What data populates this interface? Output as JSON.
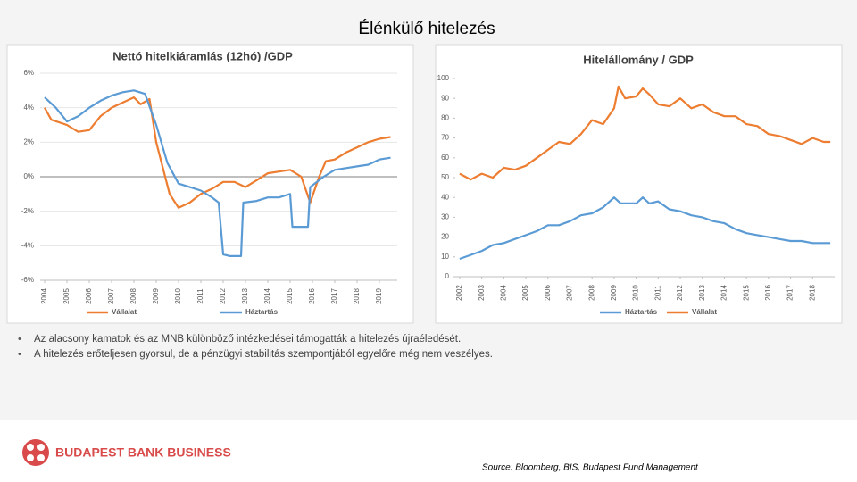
{
  "slide": {
    "title": "Élénkülő hitelezés",
    "bullets": [
      "Az alacsony kamatok és az MNB különböző intézkedései támogatták a hitelezés újraéledését.",
      "A hitelezés erőteljesen gyorsul, de a pénzügyi stabilitás szempontjából egyelőre még nem veszélyes."
    ],
    "logo": "BUDAPEST BANK BUSINESS",
    "source": "Source: Bloomberg, BIS, Budapest Fund Management"
  },
  "chart_data": [
    {
      "type": "line",
      "title": "Nettó hitelkiáramlás (12hó) /GDP",
      "xlim": [
        2003.8,
        2019.8
      ],
      "xticks": [
        2004,
        2005,
        2006,
        2007,
        2008,
        2009,
        2010,
        2011,
        2012,
        2013,
        2014,
        2015,
        2016,
        2017,
        2018,
        2019
      ],
      "ylim": [
        -6,
        6
      ],
      "yticks": [
        {
          "value": -6,
          "label": "-6%"
        },
        {
          "value": -4,
          "label": "-4%"
        },
        {
          "value": -2,
          "label": "-2%"
        },
        {
          "value": 0,
          "label": "0%"
        },
        {
          "value": 2,
          "label": "2%"
        },
        {
          "value": 4,
          "label": "4%"
        },
        {
          "value": 6,
          "label": "6%"
        }
      ],
      "grid": true,
      "series": [
        {
          "name": "Vállalat",
          "color": "#ed7d31",
          "x": [
            2004,
            2004.3,
            2005,
            2005.5,
            2006,
            2006.5,
            2007,
            2007.5,
            2008,
            2008.3,
            2008.7,
            2009,
            2009.3,
            2009.6,
            2010,
            2010.5,
            2011,
            2011.5,
            2012,
            2012.5,
            2013,
            2013.5,
            2014,
            2014.5,
            2015,
            2015.5,
            2015.9,
            2016.3,
            2016.6,
            2017,
            2017.5,
            2018,
            2018.5,
            2019,
            2019.5
          ],
          "values": [
            4.0,
            3.3,
            3.0,
            2.6,
            2.7,
            3.5,
            4.0,
            4.3,
            4.6,
            4.2,
            4.5,
            2.0,
            0.5,
            -1.0,
            -1.8,
            -1.5,
            -1.0,
            -0.7,
            -0.3,
            -0.3,
            -0.6,
            -0.2,
            0.2,
            0.3,
            0.4,
            0.0,
            -1.5,
            0.0,
            0.9,
            1.0,
            1.4,
            1.7,
            2.0,
            2.2,
            2.3
          ]
        },
        {
          "name": "Háztartás",
          "color": "#5b9bd5",
          "x": [
            2004,
            2004.5,
            2005,
            2005.5,
            2006,
            2006.5,
            2007,
            2007.5,
            2008,
            2008.5,
            2009,
            2009.5,
            2010,
            2010.5,
            2011,
            2011.5,
            2011.8,
            2012,
            2012.3,
            2012.8,
            2012.9,
            2013.5,
            2014,
            2014.5,
            2015,
            2015.1,
            2015.8,
            2015.9,
            2016.5,
            2017,
            2017.5,
            2018,
            2018.5,
            2019,
            2019.5
          ],
          "values": [
            4.6,
            4.0,
            3.2,
            3.5,
            4.0,
            4.4,
            4.7,
            4.9,
            5.0,
            4.8,
            3.0,
            0.8,
            -0.4,
            -0.6,
            -0.8,
            -1.2,
            -1.5,
            -4.5,
            -4.6,
            -4.6,
            -1.5,
            -1.4,
            -1.2,
            -1.2,
            -1.0,
            -2.9,
            -2.9,
            -0.6,
            0.0,
            0.4,
            0.5,
            0.6,
            0.7,
            1.0,
            1.1
          ]
        }
      ]
    },
    {
      "type": "line",
      "title": "Hitelállomány / GDP",
      "xlim": [
        2001.8,
        2019
      ],
      "xticks": [
        2002,
        2003,
        2004,
        2005,
        2006,
        2007,
        2008,
        2009,
        2010,
        2011,
        2012,
        2013,
        2014,
        2015,
        2016,
        2017,
        2018
      ],
      "ylim": [
        0,
        100
      ],
      "yticks": [
        0,
        10,
        20,
        30,
        40,
        50,
        60,
        70,
        80,
        90,
        100
      ],
      "grid": false,
      "series": [
        {
          "name": "Háztartás",
          "color": "#5b9bd5",
          "x": [
            2002,
            2002.5,
            2003,
            2003.5,
            2004,
            2004.5,
            2005,
            2005.5,
            2006,
            2006.5,
            2007,
            2007.5,
            2008,
            2008.5,
            2009,
            2009.3,
            2010,
            2010.3,
            2010.6,
            2011,
            2011.5,
            2012,
            2012.5,
            2013,
            2013.5,
            2014,
            2014.5,
            2015,
            2015.5,
            2016,
            2016.5,
            2017,
            2017.5,
            2018,
            2018.8
          ],
          "values": [
            9,
            11,
            13,
            16,
            17,
            19,
            21,
            23,
            26,
            26,
            28,
            31,
            32,
            35,
            40,
            37,
            37,
            40,
            37,
            38,
            34,
            33,
            31,
            30,
            28,
            27,
            24,
            22,
            21,
            20,
            19,
            18,
            18,
            17,
            17
          ]
        },
        {
          "name": "Vállalat",
          "color": "#ed7d31",
          "x": [
            2002,
            2002.5,
            2003,
            2003.5,
            2004,
            2004.5,
            2005,
            2005.5,
            2006,
            2006.5,
            2007,
            2007.5,
            2008,
            2008.5,
            2009,
            2009.2,
            2009.5,
            2010,
            2010.3,
            2010.6,
            2011,
            2011.5,
            2012,
            2012.5,
            2013,
            2013.5,
            2014,
            2014.5,
            2015,
            2015.5,
            2016,
            2016.5,
            2017,
            2017.5,
            2018,
            2018.5,
            2018.8
          ],
          "values": [
            52,
            49,
            52,
            50,
            55,
            54,
            56,
            60,
            64,
            68,
            67,
            72,
            79,
            77,
            85,
            96,
            90,
            91,
            95,
            92,
            87,
            86,
            90,
            85,
            87,
            83,
            81,
            81,
            77,
            76,
            72,
            71,
            69,
            67,
            70,
            68,
            68
          ]
        }
      ]
    }
  ]
}
